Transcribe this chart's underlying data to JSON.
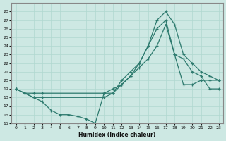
{
  "xlabel": "Humidex (Indice chaleur)",
  "bg_color": "#cde8e3",
  "line_color": "#2d7a6e",
  "xlim": [
    -0.5,
    23.5
  ],
  "ylim": [
    15,
    29
  ],
  "yticks": [
    15,
    16,
    17,
    18,
    19,
    20,
    21,
    22,
    23,
    24,
    25,
    26,
    27,
    28
  ],
  "xticks": [
    0,
    1,
    2,
    3,
    4,
    5,
    6,
    7,
    8,
    9,
    10,
    11,
    12,
    13,
    14,
    15,
    16,
    17,
    18,
    19,
    20,
    21,
    22,
    23
  ],
  "line1_x": [
    0,
    1,
    2,
    3,
    4,
    5,
    6,
    7,
    8,
    9,
    10,
    11,
    12,
    13,
    14,
    15,
    16,
    17,
    18,
    19,
    20,
    21,
    22,
    23
  ],
  "line1_y": [
    19,
    18.5,
    18,
    17.5,
    16.5,
    16,
    16,
    15.8,
    15.5,
    15,
    18.5,
    18.5,
    20,
    21,
    22,
    24,
    27,
    28,
    26.5,
    23,
    22,
    21,
    20.5,
    20
  ],
  "line2_x": [
    0,
    1,
    2,
    3,
    10,
    11,
    12,
    13,
    14,
    15,
    16,
    17,
    18,
    19,
    20,
    21,
    22,
    23
  ],
  "line2_y": [
    19,
    18.5,
    18.5,
    18.5,
    18.5,
    19,
    19.5,
    20.5,
    21.5,
    22.5,
    24,
    26.5,
    23,
    19.5,
    19.5,
    20,
    20,
    20
  ],
  "line3_x": [
    0,
    1,
    2,
    3,
    10,
    11,
    12,
    13,
    14,
    15,
    16,
    17,
    18,
    19,
    20,
    21,
    22,
    23
  ],
  "line3_y": [
    19,
    18.5,
    18,
    18,
    18,
    18.5,
    19.5,
    20.5,
    22,
    24,
    26,
    27,
    23,
    22.5,
    21,
    20.5,
    19,
    19
  ]
}
